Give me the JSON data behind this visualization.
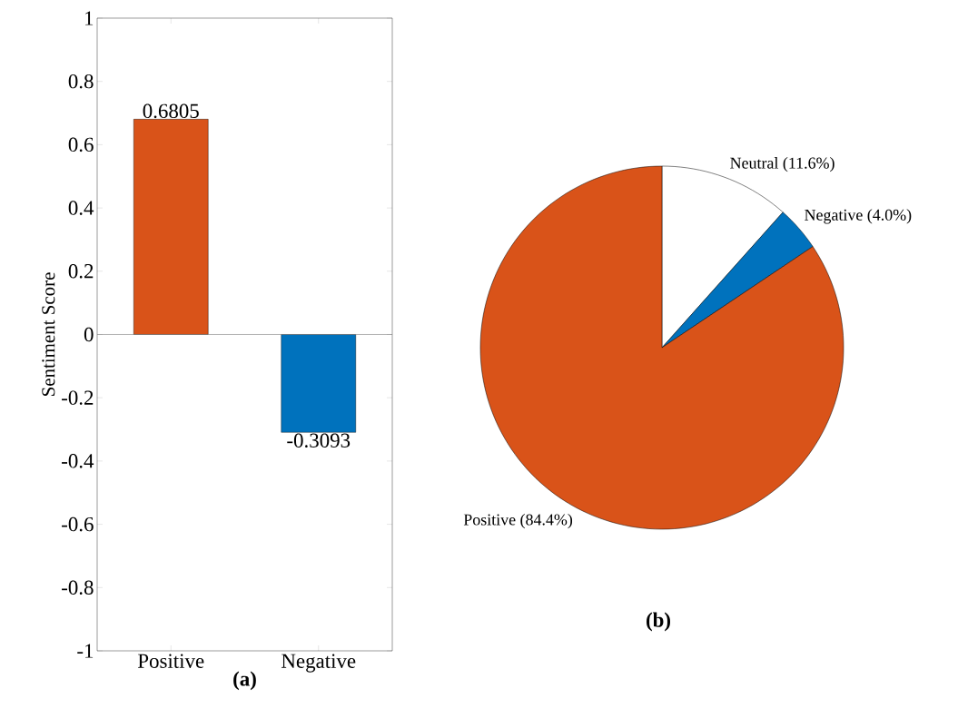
{
  "chart_data": [
    {
      "type": "bar",
      "xlabel": "(a)",
      "ylabel": "Sentiment Score",
      "categories": [
        "Positive",
        "Negative"
      ],
      "values": [
        0.6805,
        -0.3093
      ],
      "colors": [
        "#d95319",
        "#0072bd"
      ],
      "ylim": [
        -1,
        1
      ],
      "yticks": [
        -1,
        -0.8,
        -0.6,
        -0.4,
        -0.2,
        0,
        0.2,
        0.4,
        0.6,
        0.8,
        1
      ],
      "data_labels": true
    },
    {
      "type": "pie",
      "categories": [
        "Neutral (11.6%)",
        "Negative (4.0%)",
        "Positive (84.4%)"
      ],
      "values": [
        11.6,
        4.0,
        84.4
      ],
      "colors": [
        "#ffffff",
        "#0072bd",
        "#d95319"
      ],
      "annotations": [
        "(b)"
      ]
    }
  ]
}
